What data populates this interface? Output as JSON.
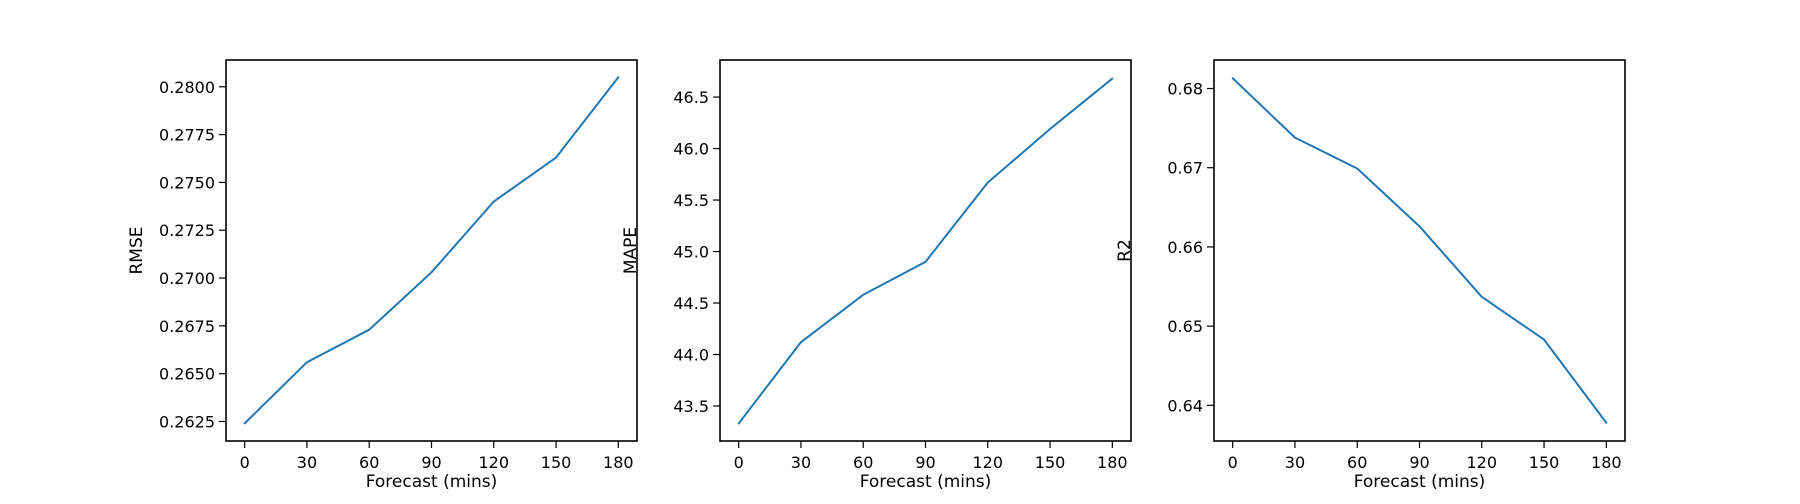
{
  "chart_data": [
    {
      "type": "line",
      "xlabel": "Forecast (mins)",
      "ylabel": "RMSE",
      "x": [
        0,
        30,
        60,
        90,
        120,
        150,
        180
      ],
      "series": [
        {
          "name": "RMSE",
          "values": [
            0.2624,
            0.2656,
            0.2673,
            0.2703,
            0.274,
            0.2763,
            0.2805
          ],
          "color": "#1f77b4"
        }
      ],
      "xticks": [
        0,
        30,
        60,
        90,
        120,
        150,
        180
      ],
      "xtick_labels": [
        "0",
        "30",
        "60",
        "90",
        "120",
        "150",
        "180"
      ],
      "yticks": [
        0.2625,
        0.265,
        0.2675,
        0.27,
        0.2725,
        0.275,
        0.2775,
        0.28
      ],
      "ytick_labels": [
        "0.2625",
        "0.2650",
        "0.2675",
        "0.2700",
        "0.2725",
        "0.2750",
        "0.2775",
        "0.2800"
      ],
      "xlim": [
        -9,
        189
      ],
      "ylim": [
        0.26148,
        0.2814
      ]
    },
    {
      "type": "line",
      "xlabel": "Forecast (mins)",
      "ylabel": "MAPE",
      "x": [
        0,
        30,
        60,
        90,
        120,
        150,
        180
      ],
      "series": [
        {
          "name": "MAPE",
          "values": [
            43.33,
            44.12,
            44.58,
            44.9,
            45.67,
            46.19,
            46.68
          ],
          "color": "#1f77b4"
        }
      ],
      "xticks": [
        0,
        30,
        60,
        90,
        120,
        150,
        180
      ],
      "xtick_labels": [
        "0",
        "30",
        "60",
        "90",
        "120",
        "150",
        "180"
      ],
      "yticks": [
        43.5,
        44.0,
        44.5,
        45.0,
        45.5,
        46.0,
        46.5
      ],
      "ytick_labels": [
        "43.5",
        "44.0",
        "44.5",
        "45.0",
        "45.5",
        "46.0",
        "46.5"
      ],
      "xlim": [
        -9,
        189
      ],
      "ylim": [
        43.16,
        46.86
      ]
    },
    {
      "type": "line",
      "xlabel": "Forecast (mins)",
      "ylabel": "R2",
      "x": [
        0,
        30,
        60,
        90,
        120,
        150,
        180
      ],
      "series": [
        {
          "name": "R2",
          "values": [
            0.6813,
            0.6738,
            0.6699,
            0.6626,
            0.6537,
            0.6483,
            0.6378
          ],
          "color": "#1f77b4"
        }
      ],
      "xticks": [
        0,
        30,
        60,
        90,
        120,
        150,
        180
      ],
      "xtick_labels": [
        "0",
        "30",
        "60",
        "90",
        "120",
        "150",
        "180"
      ],
      "yticks": [
        0.64,
        0.65,
        0.66,
        0.67,
        0.68
      ],
      "ytick_labels": [
        "0.64",
        "0.65",
        "0.66",
        "0.67",
        "0.68"
      ],
      "xlim": [
        -9,
        189
      ],
      "ylim": [
        0.6355,
        0.6836
      ]
    }
  ]
}
